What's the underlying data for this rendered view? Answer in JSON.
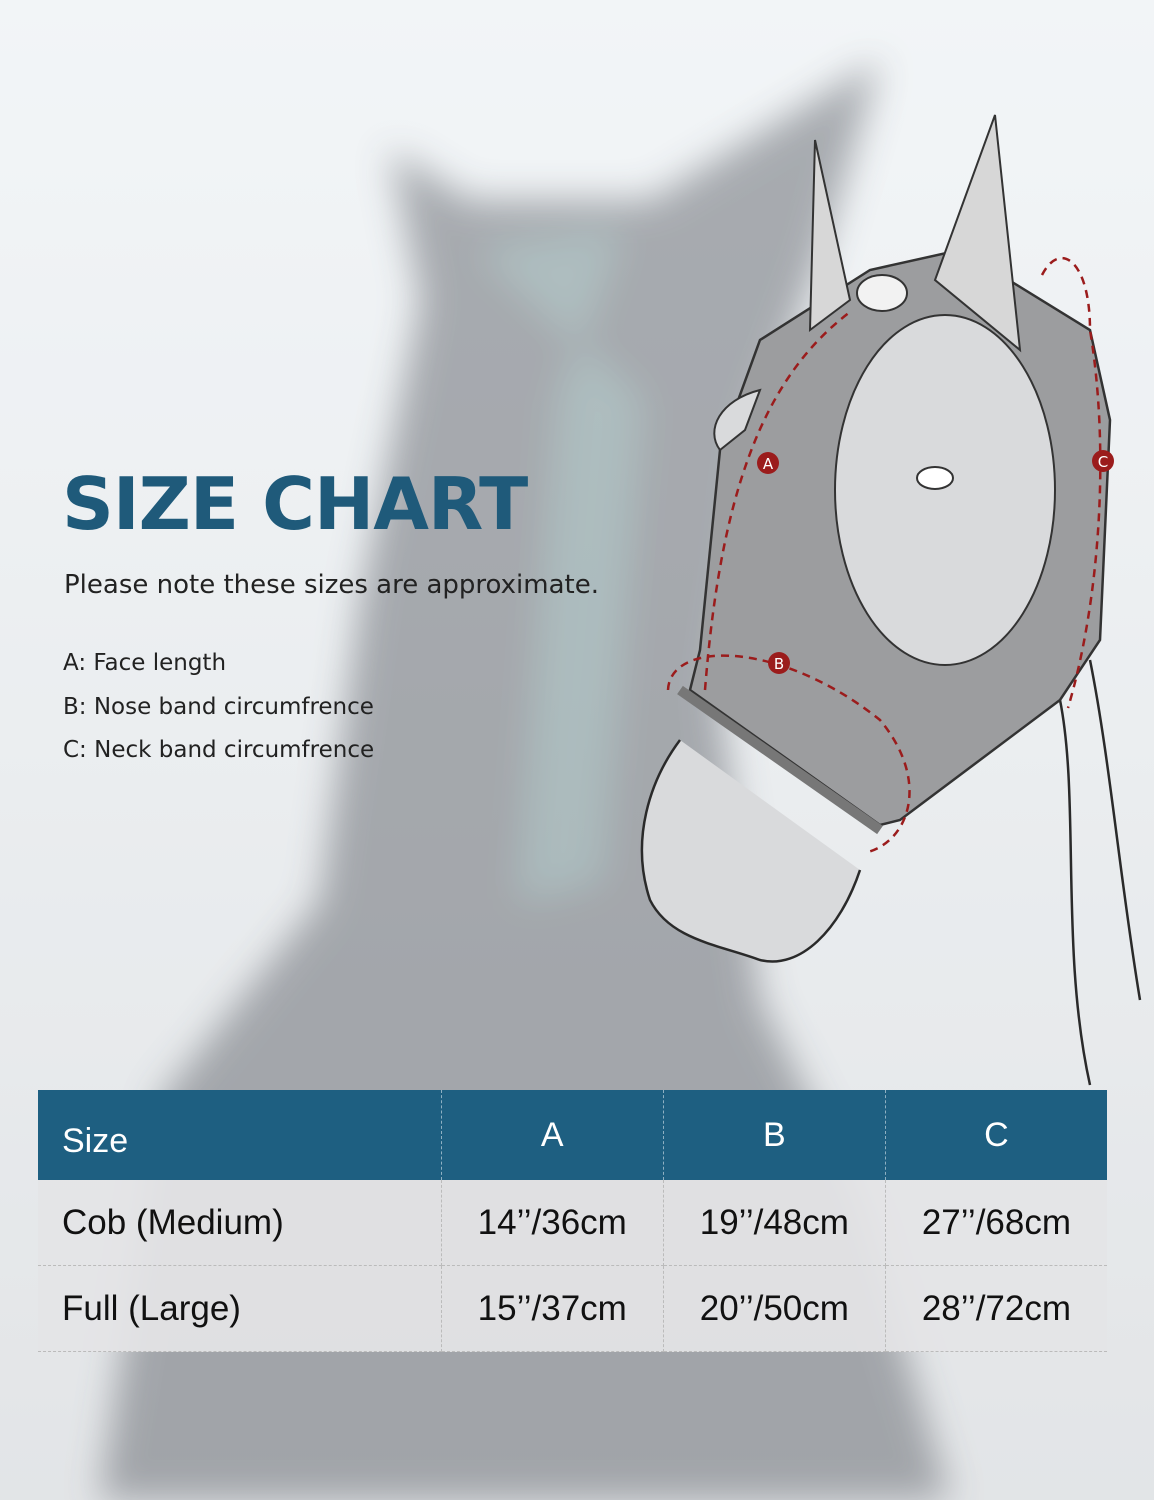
{
  "title": "SIZE CHART",
  "subtitle": "Please note these sizes are approximate.",
  "legend": [
    "A: Face length",
    "B: Nose band circumfrence",
    "C: Neck band circumfrence"
  ],
  "diagram_labels": {
    "a": "A",
    "b": "B",
    "c": "C"
  },
  "table": {
    "headers": [
      "Size",
      "A",
      "B",
      "C"
    ],
    "rows": [
      [
        "Cob (Medium)",
        "14’’/36cm",
        "19’’/48cm",
        "27’’/68cm"
      ],
      [
        "Full (Large)",
        "15’’/37cm",
        "20’’/50cm",
        "28’’/72cm"
      ]
    ]
  },
  "colors": {
    "accent": "#1e5f81",
    "measure": "#9b1c1c"
  }
}
